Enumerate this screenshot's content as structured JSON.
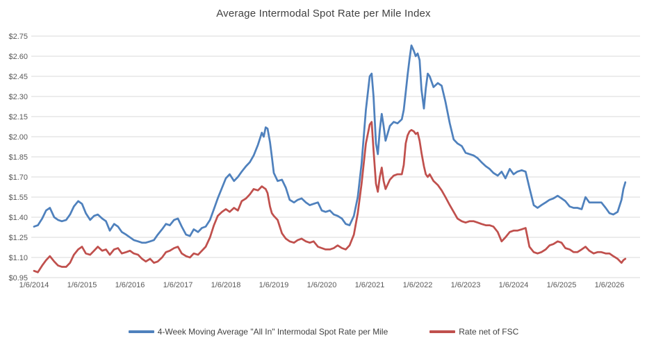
{
  "chart_data": {
    "type": "line",
    "title": "Average Intermodal Spot Rate per Mile Index",
    "legend_position": "bottom",
    "grid": "horizontal",
    "colors": {
      "gridline": "#d9d9d9",
      "tick_text": "#595959",
      "title_text": "#404040"
    },
    "y_axis": {
      "min": 0.95,
      "max": 2.75,
      "step": 0.15,
      "tick_labels": [
        "$2.75",
        "$2.60",
        "$2.45",
        "$2.30",
        "$2.15",
        "$2.00",
        "$1.85",
        "$1.70",
        "$1.55",
        "$1.40",
        "$1.25",
        "$1.10",
        "$0.95"
      ],
      "tick_values": [
        2.75,
        2.6,
        2.45,
        2.3,
        2.15,
        2.0,
        1.85,
        1.7,
        1.55,
        1.4,
        1.25,
        1.1,
        0.95
      ]
    },
    "x_axis": {
      "tick_labels": [
        "1/6/2014",
        "1/6/2015",
        "1/6/2016",
        "1/6/2017",
        "1/6/2018",
        "1/6/2019",
        "1/6/2020",
        "1/6/2021",
        "1/6/2022",
        "1/6/2023",
        "1/6/2024",
        "1/6/2025",
        "1/6/2026"
      ],
      "tick_years": [
        2014,
        2015,
        2016,
        2017,
        2018,
        2019,
        2020,
        2021,
        2022,
        2023,
        2024,
        2025,
        2026
      ]
    },
    "x_unit": "decimal_year",
    "x": [
      2014.0,
      2014.08,
      2014.17,
      2014.25,
      2014.33,
      2014.42,
      2014.5,
      2014.58,
      2014.67,
      2014.75,
      2014.83,
      2014.92,
      2015.0,
      2015.08,
      2015.17,
      2015.25,
      2015.33,
      2015.42,
      2015.5,
      2015.58,
      2015.67,
      2015.75,
      2015.83,
      2015.92,
      2016.0,
      2016.08,
      2016.17,
      2016.25,
      2016.33,
      2016.42,
      2016.5,
      2016.58,
      2016.67,
      2016.75,
      2016.83,
      2016.92,
      2017.0,
      2017.08,
      2017.17,
      2017.25,
      2017.33,
      2017.42,
      2017.5,
      2017.58,
      2017.67,
      2017.75,
      2017.83,
      2017.92,
      2018.0,
      2018.08,
      2018.17,
      2018.25,
      2018.33,
      2018.42,
      2018.5,
      2018.58,
      2018.67,
      2018.75,
      2018.79,
      2018.83,
      2018.87,
      2018.92,
      2018.96,
      2019.0,
      2019.08,
      2019.17,
      2019.25,
      2019.33,
      2019.42,
      2019.5,
      2019.58,
      2019.67,
      2019.75,
      2019.83,
      2019.92,
      2020.0,
      2020.08,
      2020.17,
      2020.25,
      2020.33,
      2020.42,
      2020.5,
      2020.58,
      2020.67,
      2020.75,
      2020.83,
      2020.92,
      2021.0,
      2021.04,
      2021.08,
      2021.13,
      2021.17,
      2021.21,
      2021.25,
      2021.29,
      2021.33,
      2021.42,
      2021.5,
      2021.58,
      2021.67,
      2021.71,
      2021.75,
      2021.79,
      2021.83,
      2021.87,
      2021.92,
      2021.96,
      2022.0,
      2022.04,
      2022.08,
      2022.13,
      2022.17,
      2022.21,
      2022.25,
      2022.33,
      2022.42,
      2022.5,
      2022.58,
      2022.67,
      2022.75,
      2022.83,
      2022.92,
      2023.0,
      2023.08,
      2023.17,
      2023.25,
      2023.33,
      2023.42,
      2023.5,
      2023.58,
      2023.67,
      2023.75,
      2023.83,
      2023.92,
      2024.0,
      2024.08,
      2024.17,
      2024.25,
      2024.33,
      2024.42,
      2024.5,
      2024.58,
      2024.67,
      2024.75,
      2024.83,
      2024.92,
      2025.0,
      2025.08,
      2025.17,
      2025.25,
      2025.33,
      2025.42,
      2025.5,
      2025.58,
      2025.67,
      2025.75,
      2025.83,
      2025.92,
      2026.0,
      2026.08,
      2026.17,
      2026.25,
      2026.29,
      2026.33
    ],
    "series": [
      {
        "name": "4-Week Moving Average \"All In\" Intermodal Spot Rate per Mile",
        "color": "#4f81bd",
        "values": [
          1.33,
          1.34,
          1.39,
          1.45,
          1.47,
          1.4,
          1.38,
          1.37,
          1.38,
          1.42,
          1.48,
          1.52,
          1.5,
          1.43,
          1.38,
          1.41,
          1.42,
          1.39,
          1.37,
          1.3,
          1.35,
          1.33,
          1.29,
          1.27,
          1.25,
          1.23,
          1.22,
          1.21,
          1.21,
          1.22,
          1.23,
          1.27,
          1.31,
          1.35,
          1.34,
          1.38,
          1.39,
          1.33,
          1.27,
          1.26,
          1.31,
          1.29,
          1.32,
          1.33,
          1.38,
          1.46,
          1.54,
          1.62,
          1.69,
          1.72,
          1.67,
          1.7,
          1.74,
          1.78,
          1.81,
          1.86,
          1.94,
          2.03,
          2.0,
          2.07,
          2.06,
          1.96,
          1.85,
          1.73,
          1.67,
          1.68,
          1.62,
          1.53,
          1.51,
          1.53,
          1.54,
          1.51,
          1.49,
          1.5,
          1.51,
          1.45,
          1.44,
          1.45,
          1.42,
          1.41,
          1.39,
          1.35,
          1.34,
          1.41,
          1.55,
          1.8,
          2.2,
          2.45,
          2.47,
          2.3,
          1.95,
          1.87,
          2.05,
          2.17,
          2.08,
          1.97,
          2.08,
          2.11,
          2.1,
          2.13,
          2.2,
          2.33,
          2.46,
          2.58,
          2.68,
          2.64,
          2.6,
          2.62,
          2.57,
          2.35,
          2.21,
          2.36,
          2.47,
          2.45,
          2.37,
          2.4,
          2.38,
          2.26,
          2.1,
          1.98,
          1.95,
          1.93,
          1.88,
          1.87,
          1.86,
          1.84,
          1.81,
          1.78,
          1.76,
          1.73,
          1.71,
          1.74,
          1.69,
          1.76,
          1.72,
          1.74,
          1.75,
          1.74,
          1.62,
          1.49,
          1.47,
          1.49,
          1.51,
          1.53,
          1.54,
          1.56,
          1.54,
          1.52,
          1.48,
          1.47,
          1.47,
          1.46,
          1.55,
          1.51,
          1.51,
          1.51,
          1.51,
          1.47,
          1.43,
          1.42,
          1.44,
          1.53,
          1.61,
          1.66
        ]
      },
      {
        "name": "Rate net of FSC",
        "color": "#c0504d",
        "values": [
          1.0,
          0.99,
          1.04,
          1.08,
          1.11,
          1.07,
          1.04,
          1.03,
          1.03,
          1.06,
          1.12,
          1.16,
          1.18,
          1.13,
          1.12,
          1.15,
          1.18,
          1.15,
          1.16,
          1.12,
          1.16,
          1.17,
          1.13,
          1.14,
          1.15,
          1.13,
          1.12,
          1.09,
          1.07,
          1.09,
          1.06,
          1.07,
          1.1,
          1.14,
          1.15,
          1.17,
          1.18,
          1.13,
          1.11,
          1.1,
          1.13,
          1.12,
          1.15,
          1.18,
          1.25,
          1.34,
          1.41,
          1.44,
          1.46,
          1.44,
          1.47,
          1.45,
          1.52,
          1.54,
          1.57,
          1.61,
          1.6,
          1.63,
          1.62,
          1.61,
          1.58,
          1.48,
          1.43,
          1.41,
          1.38,
          1.28,
          1.24,
          1.22,
          1.21,
          1.23,
          1.24,
          1.22,
          1.21,
          1.22,
          1.18,
          1.17,
          1.16,
          1.16,
          1.17,
          1.19,
          1.17,
          1.16,
          1.19,
          1.27,
          1.43,
          1.65,
          1.95,
          2.09,
          2.11,
          1.9,
          1.65,
          1.59,
          1.7,
          1.77,
          1.67,
          1.61,
          1.68,
          1.71,
          1.72,
          1.72,
          1.79,
          1.95,
          2.01,
          2.04,
          2.05,
          2.04,
          2.02,
          2.03,
          1.97,
          1.88,
          1.78,
          1.72,
          1.7,
          1.72,
          1.67,
          1.64,
          1.6,
          1.55,
          1.49,
          1.44,
          1.39,
          1.37,
          1.36,
          1.37,
          1.37,
          1.36,
          1.35,
          1.34,
          1.34,
          1.33,
          1.29,
          1.22,
          1.25,
          1.29,
          1.3,
          1.3,
          1.31,
          1.32,
          1.18,
          1.14,
          1.13,
          1.14,
          1.16,
          1.19,
          1.2,
          1.22,
          1.21,
          1.17,
          1.16,
          1.14,
          1.14,
          1.16,
          1.18,
          1.15,
          1.13,
          1.14,
          1.14,
          1.13,
          1.13,
          1.11,
          1.09,
          1.06,
          1.08,
          1.09
        ]
      }
    ]
  }
}
